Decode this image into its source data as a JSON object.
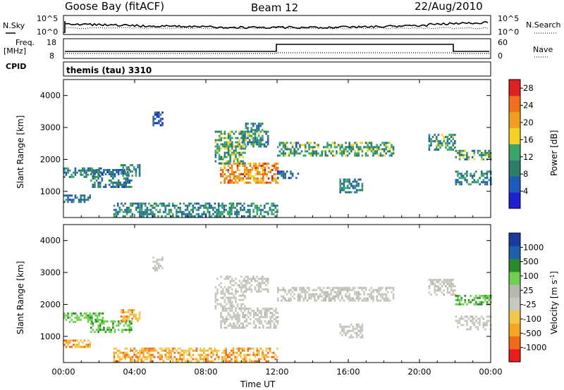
{
  "header": {
    "station": "Goose Bay (fitACF)",
    "beam": "Beam 12",
    "date": "22/Aug/2010"
  },
  "status_panels": {
    "nsky_label": "N.Sky",
    "nsky_ticks": [
      "10^5",
      "10^0"
    ],
    "nsearch_label": "N.Search",
    "nsearch_ticks": [
      "10^5",
      "10^0"
    ],
    "freq_label_1": "Freq.",
    "freq_label_2": "[MHz]",
    "freq_ticks": [
      "18",
      "8"
    ],
    "nave_label": "Nave",
    "nave_ticks": [
      "60",
      "0"
    ],
    "cpid_label": "CPID",
    "cpid_value": "themis (tau) 3310"
  },
  "colors": {
    "power_scale": [
      "#1f1fd0",
      "#1e5bb8",
      "#2e7d6a",
      "#3aa56a",
      "#f2d226",
      "#f0a020",
      "#f07020",
      "#e02020"
    ],
    "velocity_scale": [
      "#e81d1d",
      "#f06a1a",
      "#f5a623",
      "#f2c84a",
      "#c8c8c0",
      "#b8b8b0",
      "#6fd050",
      "#2b8a2b",
      "#2060a8",
      "#1a3aa0"
    ],
    "frame": "#000000"
  },
  "chart_data": [
    {
      "type": "heatmap",
      "name": "power",
      "xlabel": "Time UT",
      "ylabel": "Slant Range [km]",
      "xlim": [
        0,
        24
      ],
      "ylim": [
        180,
        4500
      ],
      "x_tick_labels": [
        "00:00",
        "04:00",
        "08:00",
        "12:00",
        "16:00",
        "20:00",
        "00:00"
      ],
      "y_tick_values": [
        1000,
        2000,
        3000,
        4000
      ],
      "y_tick_labels": [
        "1000",
        "2000",
        "3000",
        "4000"
      ],
      "colorbar_label": "Power [dB]",
      "colorbar_ticks": [
        "4",
        "8",
        "12",
        "16",
        "20",
        "24",
        "28"
      ],
      "colorbar_range": [
        0,
        30
      ],
      "echo_regions": [
        {
          "t0": 0.0,
          "t1": 2.2,
          "r0": 1450,
          "r1": 1750,
          "value": 9
        },
        {
          "t0": 0.0,
          "t1": 1.5,
          "r0": 700,
          "r1": 900,
          "value": 7
        },
        {
          "t0": 1.5,
          "t1": 3.8,
          "r0": 1150,
          "r1": 1700,
          "value": 8
        },
        {
          "t0": 3.2,
          "t1": 4.3,
          "r0": 1500,
          "r1": 1850,
          "value": 9
        },
        {
          "t0": 5.0,
          "t1": 5.6,
          "r0": 3100,
          "r1": 3500,
          "value": 6
        },
        {
          "t0": 2.8,
          "t1": 12.0,
          "r0": 250,
          "r1": 650,
          "value": 10
        },
        {
          "t0": 8.8,
          "t1": 12.0,
          "r0": 1300,
          "r1": 1900,
          "value": 22
        },
        {
          "t0": 8.5,
          "t1": 10.2,
          "r0": 1900,
          "r1": 2900,
          "value": 12
        },
        {
          "t0": 10.0,
          "t1": 11.5,
          "r0": 2400,
          "r1": 2900,
          "value": 11
        },
        {
          "t0": 10.2,
          "t1": 11.2,
          "r0": 2950,
          "r1": 3150,
          "value": 9
        },
        {
          "t0": 12.0,
          "t1": 18.5,
          "r0": 2150,
          "r1": 2550,
          "value": 12
        },
        {
          "t0": 15.5,
          "t1": 16.8,
          "r0": 1000,
          "r1": 1400,
          "value": 10
        },
        {
          "t0": 12.0,
          "t1": 13.2,
          "r0": 1400,
          "r1": 1650,
          "value": 8
        },
        {
          "t0": 20.5,
          "t1": 22.0,
          "r0": 2300,
          "r1": 2800,
          "value": 11
        },
        {
          "t0": 22.0,
          "t1": 24.0,
          "r0": 2000,
          "r1": 2300,
          "value": 12
        },
        {
          "t0": 22.0,
          "t1": 24.0,
          "r0": 1250,
          "r1": 1650,
          "value": 10
        }
      ]
    },
    {
      "type": "heatmap",
      "name": "velocity",
      "xlabel": "Time UT",
      "ylabel": "Slant Range [km]",
      "xlim": [
        0,
        24
      ],
      "ylim": [
        180,
        4500
      ],
      "x_tick_labels": [
        "00:00",
        "04:00",
        "08:00",
        "12:00",
        "16:00",
        "20:00",
        "00:00"
      ],
      "y_tick_values": [
        1000,
        2000,
        3000,
        4000
      ],
      "y_tick_labels": [
        "1000",
        "2000",
        "3000",
        "4000"
      ],
      "colorbar_label": "Velocity [m s",
      "colorbar_exponent": "-1",
      "colorbar_ticks": [
        "1000",
        "500",
        "100",
        "25",
        "-25",
        "-100",
        "-500",
        "-1000"
      ],
      "echo_regions": [
        {
          "t0": 0.0,
          "t1": 2.2,
          "r0": 1450,
          "r1": 1750,
          "value": "green"
        },
        {
          "t0": 0.0,
          "t1": 1.5,
          "r0": 700,
          "r1": 900,
          "value": "orange"
        },
        {
          "t0": 1.5,
          "t1": 3.8,
          "r0": 1150,
          "r1": 1500,
          "value": "green"
        },
        {
          "t0": 3.2,
          "t1": 4.3,
          "r0": 1500,
          "r1": 1850,
          "value": "orange"
        },
        {
          "t0": 5.0,
          "t1": 5.6,
          "r0": 3100,
          "r1": 3500,
          "value": "gray"
        },
        {
          "t0": 2.8,
          "t1": 12.0,
          "r0": 250,
          "r1": 650,
          "value": "orange"
        },
        {
          "t0": 8.8,
          "t1": 12.0,
          "r0": 1300,
          "r1": 1900,
          "value": "gray"
        },
        {
          "t0": 8.5,
          "t1": 10.2,
          "r0": 1900,
          "r1": 2900,
          "value": "gray"
        },
        {
          "t0": 10.0,
          "t1": 11.5,
          "r0": 2400,
          "r1": 2900,
          "value": "gray"
        },
        {
          "t0": 12.0,
          "t1": 18.5,
          "r0": 2150,
          "r1": 2550,
          "value": "gray"
        },
        {
          "t0": 15.5,
          "t1": 16.8,
          "r0": 1000,
          "r1": 1400,
          "value": "gray"
        },
        {
          "t0": 20.5,
          "t1": 22.0,
          "r0": 2300,
          "r1": 2800,
          "value": "gray"
        },
        {
          "t0": 22.0,
          "t1": 24.0,
          "r0": 2000,
          "r1": 2300,
          "value": "green"
        },
        {
          "t0": 22.0,
          "t1": 24.0,
          "r0": 1250,
          "r1": 1650,
          "value": "gray"
        }
      ]
    }
  ]
}
